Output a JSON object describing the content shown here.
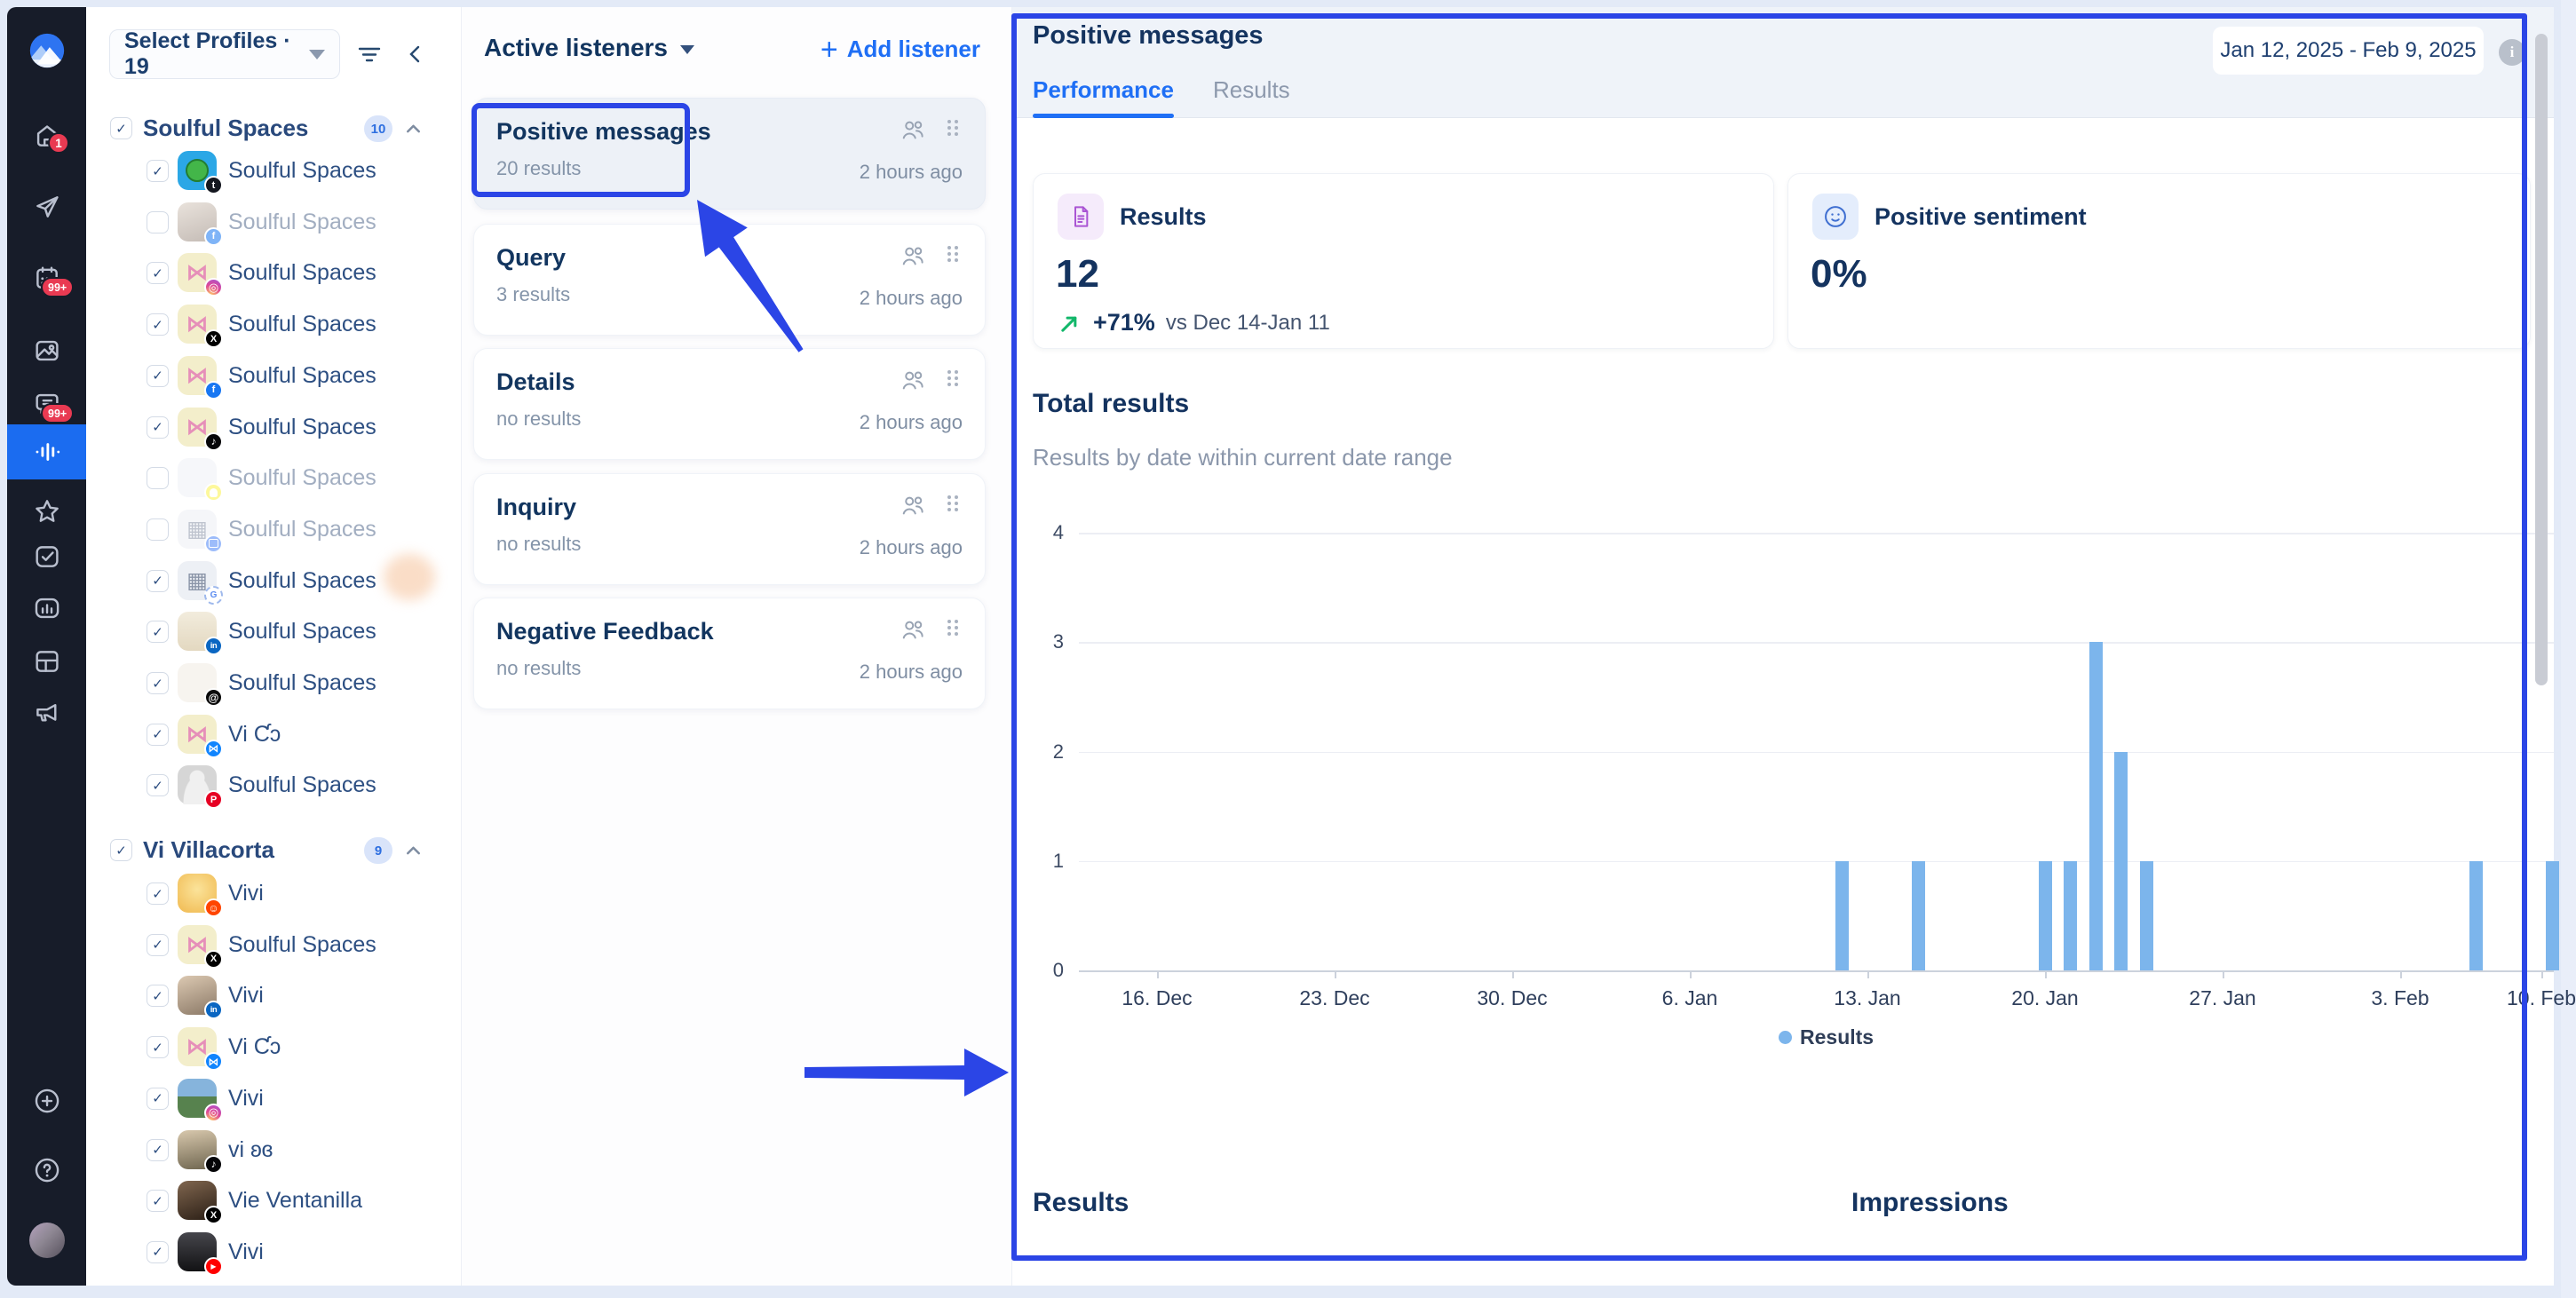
{
  "colors": {
    "accent_blue": "#1f6ff5",
    "annotation_blue": "#2b45e6",
    "bar_blue": "#7cb5ec",
    "navy_text": "#14335f",
    "trend_green": "#12b76a",
    "badge_red": "#e93a52",
    "rail_bg": "#171c29",
    "kpi_purple": "#aa55d4",
    "kpi_smiley_blue": "#3f6fd1"
  },
  "sidebar": {
    "logo": "vista-social-logo",
    "badges": {
      "home": "1",
      "calendar": "99+",
      "messages": "99+"
    },
    "items": [
      "home",
      "publish",
      "calendar",
      "media",
      "messages",
      "listening",
      "favorites",
      "tasks",
      "reports",
      "boards",
      "advocacy"
    ],
    "active_item": "listening",
    "footer_items": [
      "add",
      "help",
      "account"
    ]
  },
  "profiles_panel": {
    "selector_label": "Select Profiles · 19",
    "groups": [
      {
        "name": "Soulful Spaces",
        "count": "10",
        "items": [
          {
            "label": "Soulful Spaces",
            "network": "tumblr",
            "checked": true,
            "avatar": "cyan"
          },
          {
            "label": "Soulful Spaces",
            "network": "facebook",
            "checked": false,
            "avatar": "photo-face"
          },
          {
            "label": "Soulful Spaces",
            "network": "instagram",
            "checked": true,
            "avatar": "butterfly"
          },
          {
            "label": "Soulful Spaces",
            "network": "x",
            "checked": true,
            "avatar": "butterfly"
          },
          {
            "label": "Soulful Spaces",
            "network": "facebook",
            "checked": true,
            "avatar": "butterfly"
          },
          {
            "label": "Soulful Spaces",
            "network": "tiktok",
            "checked": true,
            "avatar": "butterfly"
          },
          {
            "label": "Soulful Spaces",
            "network": "snapchat",
            "checked": false,
            "avatar": "blank"
          },
          {
            "label": "Soulful Spaces",
            "network": "business",
            "checked": false,
            "avatar": "building"
          },
          {
            "label": "Soulful Spaces",
            "network": "google",
            "checked": true,
            "avatar": "building"
          },
          {
            "label": "Soulful Spaces",
            "network": "linkedin",
            "checked": true,
            "avatar": "beige"
          },
          {
            "label": "Soulful Spaces",
            "network": "threads",
            "checked": true,
            "avatar": "paper"
          },
          {
            "label": "Vi Ƈɔ",
            "network": "bluesky",
            "checked": true,
            "avatar": "butterfly"
          },
          {
            "label": "Soulful Spaces",
            "network": "pinterest",
            "checked": true,
            "avatar": "person"
          }
        ]
      },
      {
        "name": "Vi Villacorta",
        "count": "9",
        "items": [
          {
            "label": "Vivi",
            "network": "reddit",
            "checked": true,
            "avatar": "cartoon"
          },
          {
            "label": "Soulful Spaces",
            "network": "x",
            "checked": true,
            "avatar": "butterfly"
          },
          {
            "label": "Vivi",
            "network": "linkedin",
            "checked": true,
            "avatar": "photo-warm"
          },
          {
            "label": "Vi Ƈɔ",
            "network": "bluesky",
            "checked": true,
            "avatar": "butterfly"
          },
          {
            "label": "Vivi",
            "network": "instagram",
            "checked": true,
            "avatar": "photo-landscape"
          },
          {
            "label": "vi ʚɞ",
            "network": "tiktok",
            "checked": true,
            "avatar": "photo-cap"
          },
          {
            "label": "Vie Ventanilla",
            "network": "x",
            "checked": true,
            "avatar": "photo-dark"
          },
          {
            "label": "Vivi",
            "network": "youtube",
            "checked": true,
            "avatar": "photo-black"
          }
        ]
      }
    ]
  },
  "listeners_panel": {
    "title": "Active listeners",
    "add_label": "Add listener",
    "cards": [
      {
        "title": "Positive messages",
        "meta": "20 results",
        "time": "2 hours ago",
        "selected": true
      },
      {
        "title": "Query",
        "meta": "3 results",
        "time": "2 hours ago",
        "selected": false
      },
      {
        "title": "Details",
        "meta": "no results",
        "time": "2 hours ago",
        "selected": false
      },
      {
        "title": "Inquiry",
        "meta": "no results",
        "time": "2 hours ago",
        "selected": false
      },
      {
        "title": "Negative Feedback",
        "meta": "no results",
        "time": "2 hours ago",
        "selected": false
      }
    ]
  },
  "main": {
    "title": "Positive messages",
    "tabs": [
      {
        "label": "Performance",
        "active": true
      },
      {
        "label": "Results",
        "active": false
      }
    ],
    "date_range": "Jan 12, 2025 - Feb 9, 2025",
    "kpis": [
      {
        "icon": "document-icon",
        "label": "Results",
        "value": "12",
        "trend_value": "+71%",
        "trend_note": "vs Dec 14-Jan 11"
      },
      {
        "icon": "smiley-icon",
        "label": "Positive sentiment",
        "value": "0%",
        "trend_value": "",
        "trend_note": ""
      }
    ],
    "section_title": "Total results",
    "section_subtitle": "Results by date within current date range",
    "bottom_sections": [
      "Results",
      "Impressions"
    ],
    "chart_data": {
      "type": "bar",
      "title": "Total results",
      "subtitle": "Results by date within current date range",
      "x_ticks": [
        "16. Dec",
        "23. Dec",
        "30. Dec",
        "6. Jan",
        "13. Jan",
        "20. Jan",
        "27. Jan",
        "3. Feb",
        "10. Feb"
      ],
      "points": [
        {
          "date": "Jan 12",
          "value": 1
        },
        {
          "date": "Jan 15",
          "value": 1
        },
        {
          "date": "Jan 20",
          "value": 1
        },
        {
          "date": "Jan 21",
          "value": 1
        },
        {
          "date": "Jan 22",
          "value": 3
        },
        {
          "date": "Jan 23",
          "value": 2
        },
        {
          "date": "Jan 24",
          "value": 1
        },
        {
          "date": "Feb 6",
          "value": 1
        },
        {
          "date": "Feb 9",
          "value": 1
        }
      ],
      "y_ticks": [
        0,
        1,
        2,
        3,
        4
      ],
      "ylim": [
        0,
        4
      ],
      "grid": true,
      "bar_color": "#7cb5ec",
      "legend": [
        {
          "name": "Results",
          "color": "#7cb5ec"
        }
      ],
      "legend_position": "bottom"
    }
  }
}
